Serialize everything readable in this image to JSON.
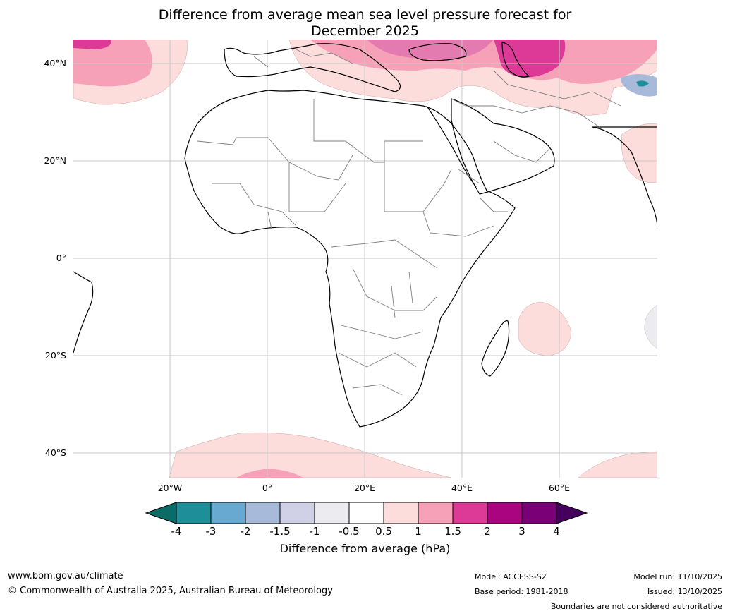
{
  "title_line1": "Difference from average mean sea level pressure forecast for",
  "title_line2": "December 2025",
  "lat_labels": [
    "40°N",
    "20°N",
    "0°",
    "20°S",
    "40°S"
  ],
  "lon_labels": [
    "20°W",
    "0°",
    "20°E",
    "40°E",
    "60°E"
  ],
  "colorbar": {
    "ticks": [
      "-4",
      "-3",
      "-2",
      "-1.5",
      "-1",
      "-0.5",
      "0.5",
      "1",
      "1.5",
      "2",
      "3",
      "4"
    ],
    "colors": [
      "#0b6b66",
      "#1e8f98",
      "#67a9d1",
      "#a7bad9",
      "#d0d0e6",
      "#ececf0",
      "#ffffff",
      "#fddcdc",
      "#f7a1b8",
      "#dd3a97",
      "#ab0480",
      "#7a0077",
      "#44005c"
    ],
    "label": "Difference from average (hPa)"
  },
  "footer": {
    "website": "www.bom.gov.au/climate",
    "copyright": "© Commonwealth of Australia 2025, Australian Bureau of Meteorology",
    "model": "Model: ACCESS-S2",
    "base_period": "Base period: 1981-2018",
    "model_run": "Model run: 11/10/2025",
    "issued": "Issued: 13/10/2025",
    "disclaimer": "Boundaries are not considered authoritative"
  }
}
